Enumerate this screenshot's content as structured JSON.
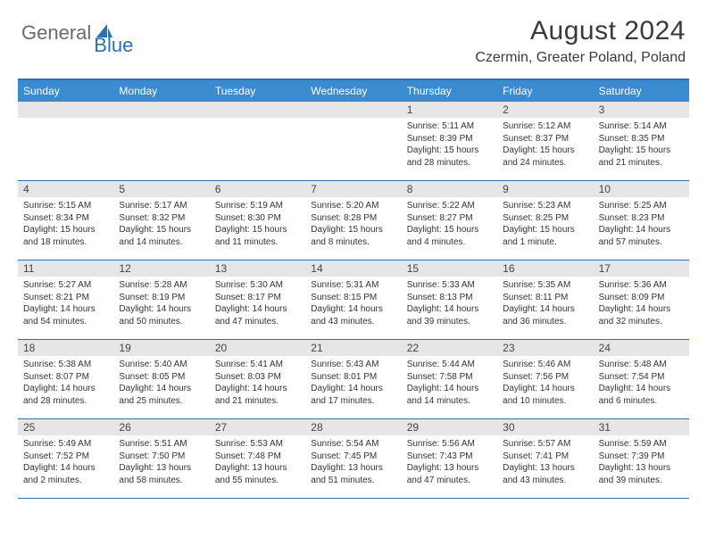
{
  "logo": {
    "general": "General",
    "blue": "Blue"
  },
  "title": {
    "month": "August 2024",
    "location": "Czermin, Greater Poland, Poland"
  },
  "colors": {
    "accent": "#2a72b5",
    "header_bg": "#3b8bd0",
    "daynum_bg": "#e6e6e6",
    "text": "#333333"
  },
  "weekdays": [
    "Sunday",
    "Monday",
    "Tuesday",
    "Wednesday",
    "Thursday",
    "Friday",
    "Saturday"
  ],
  "weeks": [
    [
      {
        "n": "",
        "sunrise": "",
        "sunset": "",
        "daylight": ""
      },
      {
        "n": "",
        "sunrise": "",
        "sunset": "",
        "daylight": ""
      },
      {
        "n": "",
        "sunrise": "",
        "sunset": "",
        "daylight": ""
      },
      {
        "n": "",
        "sunrise": "",
        "sunset": "",
        "daylight": ""
      },
      {
        "n": "1",
        "sunrise": "Sunrise: 5:11 AM",
        "sunset": "Sunset: 8:39 PM",
        "daylight": "Daylight: 15 hours and 28 minutes."
      },
      {
        "n": "2",
        "sunrise": "Sunrise: 5:12 AM",
        "sunset": "Sunset: 8:37 PM",
        "daylight": "Daylight: 15 hours and 24 minutes."
      },
      {
        "n": "3",
        "sunrise": "Sunrise: 5:14 AM",
        "sunset": "Sunset: 8:35 PM",
        "daylight": "Daylight: 15 hours and 21 minutes."
      }
    ],
    [
      {
        "n": "4",
        "sunrise": "Sunrise: 5:15 AM",
        "sunset": "Sunset: 8:34 PM",
        "daylight": "Daylight: 15 hours and 18 minutes."
      },
      {
        "n": "5",
        "sunrise": "Sunrise: 5:17 AM",
        "sunset": "Sunset: 8:32 PM",
        "daylight": "Daylight: 15 hours and 14 minutes."
      },
      {
        "n": "6",
        "sunrise": "Sunrise: 5:19 AM",
        "sunset": "Sunset: 8:30 PM",
        "daylight": "Daylight: 15 hours and 11 minutes."
      },
      {
        "n": "7",
        "sunrise": "Sunrise: 5:20 AM",
        "sunset": "Sunset: 8:28 PM",
        "daylight": "Daylight: 15 hours and 8 minutes."
      },
      {
        "n": "8",
        "sunrise": "Sunrise: 5:22 AM",
        "sunset": "Sunset: 8:27 PM",
        "daylight": "Daylight: 15 hours and 4 minutes."
      },
      {
        "n": "9",
        "sunrise": "Sunrise: 5:23 AM",
        "sunset": "Sunset: 8:25 PM",
        "daylight": "Daylight: 15 hours and 1 minute."
      },
      {
        "n": "10",
        "sunrise": "Sunrise: 5:25 AM",
        "sunset": "Sunset: 8:23 PM",
        "daylight": "Daylight: 14 hours and 57 minutes."
      }
    ],
    [
      {
        "n": "11",
        "sunrise": "Sunrise: 5:27 AM",
        "sunset": "Sunset: 8:21 PM",
        "daylight": "Daylight: 14 hours and 54 minutes."
      },
      {
        "n": "12",
        "sunrise": "Sunrise: 5:28 AM",
        "sunset": "Sunset: 8:19 PM",
        "daylight": "Daylight: 14 hours and 50 minutes."
      },
      {
        "n": "13",
        "sunrise": "Sunrise: 5:30 AM",
        "sunset": "Sunset: 8:17 PM",
        "daylight": "Daylight: 14 hours and 47 minutes."
      },
      {
        "n": "14",
        "sunrise": "Sunrise: 5:31 AM",
        "sunset": "Sunset: 8:15 PM",
        "daylight": "Daylight: 14 hours and 43 minutes."
      },
      {
        "n": "15",
        "sunrise": "Sunrise: 5:33 AM",
        "sunset": "Sunset: 8:13 PM",
        "daylight": "Daylight: 14 hours and 39 minutes."
      },
      {
        "n": "16",
        "sunrise": "Sunrise: 5:35 AM",
        "sunset": "Sunset: 8:11 PM",
        "daylight": "Daylight: 14 hours and 36 minutes."
      },
      {
        "n": "17",
        "sunrise": "Sunrise: 5:36 AM",
        "sunset": "Sunset: 8:09 PM",
        "daylight": "Daylight: 14 hours and 32 minutes."
      }
    ],
    [
      {
        "n": "18",
        "sunrise": "Sunrise: 5:38 AM",
        "sunset": "Sunset: 8:07 PM",
        "daylight": "Daylight: 14 hours and 28 minutes."
      },
      {
        "n": "19",
        "sunrise": "Sunrise: 5:40 AM",
        "sunset": "Sunset: 8:05 PM",
        "daylight": "Daylight: 14 hours and 25 minutes."
      },
      {
        "n": "20",
        "sunrise": "Sunrise: 5:41 AM",
        "sunset": "Sunset: 8:03 PM",
        "daylight": "Daylight: 14 hours and 21 minutes."
      },
      {
        "n": "21",
        "sunrise": "Sunrise: 5:43 AM",
        "sunset": "Sunset: 8:01 PM",
        "daylight": "Daylight: 14 hours and 17 minutes."
      },
      {
        "n": "22",
        "sunrise": "Sunrise: 5:44 AM",
        "sunset": "Sunset: 7:58 PM",
        "daylight": "Daylight: 14 hours and 14 minutes."
      },
      {
        "n": "23",
        "sunrise": "Sunrise: 5:46 AM",
        "sunset": "Sunset: 7:56 PM",
        "daylight": "Daylight: 14 hours and 10 minutes."
      },
      {
        "n": "24",
        "sunrise": "Sunrise: 5:48 AM",
        "sunset": "Sunset: 7:54 PM",
        "daylight": "Daylight: 14 hours and 6 minutes."
      }
    ],
    [
      {
        "n": "25",
        "sunrise": "Sunrise: 5:49 AM",
        "sunset": "Sunset: 7:52 PM",
        "daylight": "Daylight: 14 hours and 2 minutes."
      },
      {
        "n": "26",
        "sunrise": "Sunrise: 5:51 AM",
        "sunset": "Sunset: 7:50 PM",
        "daylight": "Daylight: 13 hours and 58 minutes."
      },
      {
        "n": "27",
        "sunrise": "Sunrise: 5:53 AM",
        "sunset": "Sunset: 7:48 PM",
        "daylight": "Daylight: 13 hours and 55 minutes."
      },
      {
        "n": "28",
        "sunrise": "Sunrise: 5:54 AM",
        "sunset": "Sunset: 7:45 PM",
        "daylight": "Daylight: 13 hours and 51 minutes."
      },
      {
        "n": "29",
        "sunrise": "Sunrise: 5:56 AM",
        "sunset": "Sunset: 7:43 PM",
        "daylight": "Daylight: 13 hours and 47 minutes."
      },
      {
        "n": "30",
        "sunrise": "Sunrise: 5:57 AM",
        "sunset": "Sunset: 7:41 PM",
        "daylight": "Daylight: 13 hours and 43 minutes."
      },
      {
        "n": "31",
        "sunrise": "Sunrise: 5:59 AM",
        "sunset": "Sunset: 7:39 PM",
        "daylight": "Daylight: 13 hours and 39 minutes."
      }
    ]
  ]
}
